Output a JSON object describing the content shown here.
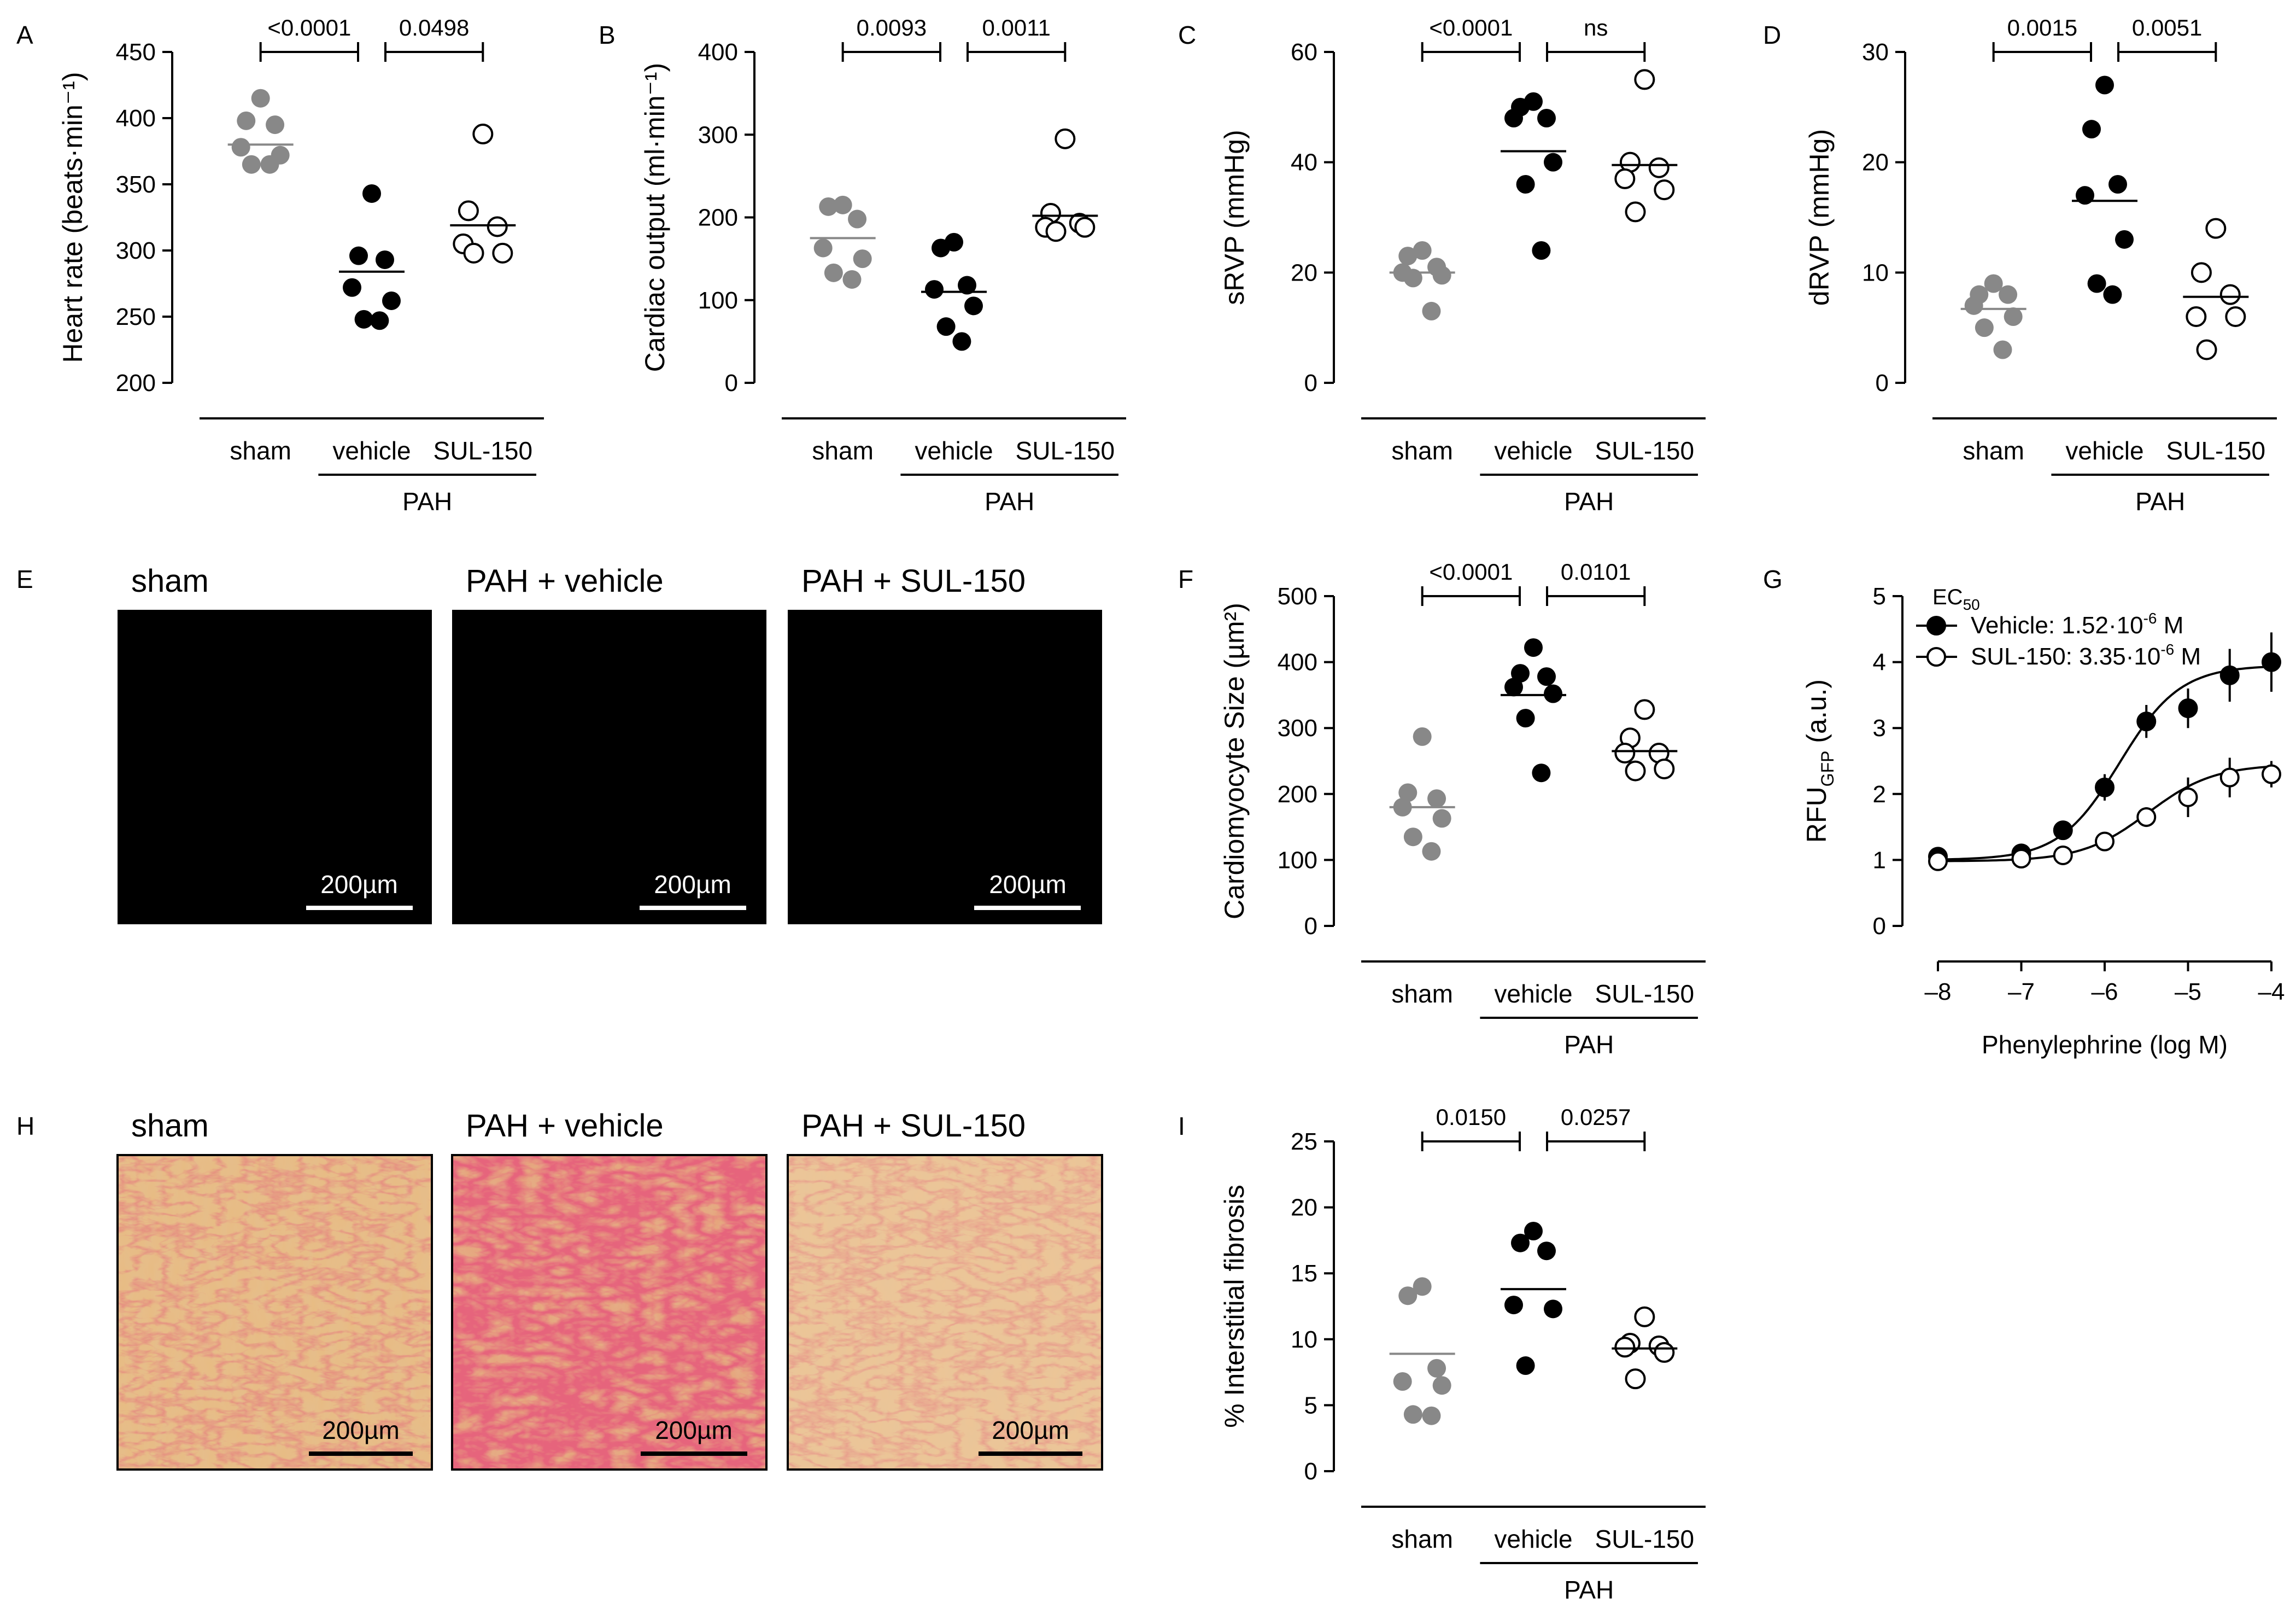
{
  "figure": {
    "panel_letters": [
      "A",
      "B",
      "C",
      "D",
      "E",
      "F",
      "G",
      "H",
      "I"
    ],
    "colors": {
      "sham": "#888888",
      "vehicle": "#000000",
      "sul150": "#ffffff",
      "axis": "#000000",
      "fluor_bg": "#000000",
      "fluor_fg": "#22c022",
      "sirius_bg": "#e8bb82",
      "sirius_fiber": "#c81e3c",
      "scalebar_fluor": "#ffffff",
      "scalebar_sirius": "#000000"
    }
  },
  "chart_data": [
    {
      "id": "A",
      "type": "scatter",
      "ylabel": "Heart rate (beats·min⁻¹)",
      "ylim": [
        200,
        450
      ],
      "yticks": [
        200,
        250,
        300,
        350,
        400,
        450
      ],
      "categories": [
        "sham",
        "vehicle",
        "SUL-150"
      ],
      "group_label": "PAH",
      "series": [
        {
          "name": "sham",
          "style": "gray",
          "values": [
            415,
            398,
            395,
            378,
            372,
            365,
            365
          ],
          "mean": 380
        },
        {
          "name": "vehicle",
          "style": "black",
          "values": [
            343,
            296,
            293,
            272,
            262,
            248,
            247
          ],
          "mean": 284
        },
        {
          "name": "SUL-150",
          "style": "open",
          "values": [
            388,
            330,
            318,
            305,
            298,
            298
          ],
          "mean": 319
        }
      ],
      "comparisons": [
        {
          "from": 0,
          "to": 1,
          "label": "<0.0001"
        },
        {
          "from": 1,
          "to": 2,
          "label": "0.0498"
        }
      ]
    },
    {
      "id": "B",
      "type": "scatter",
      "ylabel": "Cardiac output (ml·min⁻¹)",
      "ylim": [
        0,
        400
      ],
      "yticks": [
        0,
        100,
        200,
        300,
        400
      ],
      "categories": [
        "sham",
        "vehicle",
        "SUL-150"
      ],
      "group_label": "PAH",
      "series": [
        {
          "name": "sham",
          "style": "gray",
          "values": [
            215,
            213,
            198,
            163,
            150,
            133,
            125
          ],
          "mean": 175
        },
        {
          "name": "vehicle",
          "style": "black",
          "values": [
            170,
            163,
            118,
            113,
            93,
            68,
            50
          ],
          "mean": 110
        },
        {
          "name": "SUL-150",
          "style": "open",
          "values": [
            295,
            205,
            193,
            188,
            188,
            183
          ],
          "mean": 202
        }
      ],
      "comparisons": [
        {
          "from": 0,
          "to": 1,
          "label": "0.0093"
        },
        {
          "from": 1,
          "to": 2,
          "label": "0.0011"
        }
      ]
    },
    {
      "id": "C",
      "type": "scatter",
      "ylabel": "sRVP (mmHg)",
      "ylim": [
        0,
        60
      ],
      "yticks": [
        0,
        20,
        40,
        60
      ],
      "categories": [
        "sham",
        "vehicle",
        "SUL-150"
      ],
      "group_label": "PAH",
      "series": [
        {
          "name": "sham",
          "style": "gray",
          "values": [
            24,
            23,
            21,
            20,
            19.5,
            19,
            13
          ],
          "mean": 20
        },
        {
          "name": "vehicle",
          "style": "black",
          "values": [
            51,
            50,
            48,
            48,
            40,
            36,
            24
          ],
          "mean": 42
        },
        {
          "name": "SUL-150",
          "style": "open",
          "values": [
            55,
            40,
            39,
            37,
            35,
            31
          ],
          "mean": 39.5
        }
      ],
      "comparisons": [
        {
          "from": 0,
          "to": 1,
          "label": "<0.0001"
        },
        {
          "from": 1,
          "to": 2,
          "label": "ns"
        }
      ]
    },
    {
      "id": "D",
      "type": "scatter",
      "ylabel": "dRVP (mmHg)",
      "ylim": [
        0,
        30
      ],
      "yticks": [
        0,
        10,
        20,
        30
      ],
      "categories": [
        "sham",
        "vehicle",
        "SUL-150"
      ],
      "group_label": "PAH",
      "series": [
        {
          "name": "sham",
          "style": "gray",
          "values": [
            9,
            8,
            8,
            7,
            6,
            5,
            3
          ],
          "mean": 6.7
        },
        {
          "name": "vehicle",
          "style": "black",
          "values": [
            27,
            23,
            18,
            17,
            13,
            9,
            8
          ],
          "mean": 16.5
        },
        {
          "name": "SUL-150",
          "style": "open",
          "values": [
            14,
            10,
            8,
            6,
            6,
            3
          ],
          "mean": 7.8
        }
      ],
      "comparisons": [
        {
          "from": 0,
          "to": 1,
          "label": "0.0015"
        },
        {
          "from": 1,
          "to": 2,
          "label": "0.0051"
        }
      ]
    },
    {
      "id": "F",
      "type": "scatter",
      "ylabel": "Cardiomyocyte Size (µm²)",
      "ylim": [
        0,
        500
      ],
      "yticks": [
        0,
        100,
        200,
        300,
        400,
        500
      ],
      "categories": [
        "sham",
        "vehicle",
        "SUL-150"
      ],
      "group_label": "PAH",
      "series": [
        {
          "name": "sham",
          "style": "gray",
          "values": [
            287,
            202,
            193,
            180,
            163,
            135,
            113
          ],
          "mean": 180
        },
        {
          "name": "vehicle",
          "style": "black",
          "values": [
            422,
            383,
            378,
            362,
            352,
            315,
            232
          ],
          "mean": 350
        },
        {
          "name": "SUL-150",
          "style": "open",
          "values": [
            328,
            285,
            262,
            262,
            238,
            235
          ],
          "mean": 265
        }
      ],
      "comparisons": [
        {
          "from": 0,
          "to": 1,
          "label": "<0.0001"
        },
        {
          "from": 1,
          "to": 2,
          "label": "0.0101"
        }
      ]
    },
    {
      "id": "I",
      "type": "scatter",
      "ylabel": "% Interstitial fibrosis",
      "ylim": [
        0,
        25
      ],
      "yticks": [
        0,
        5,
        10,
        15,
        20,
        25
      ],
      "categories": [
        "sham",
        "vehicle",
        "SUL-150"
      ],
      "group_label": "PAH",
      "series": [
        {
          "name": "sham",
          "style": "gray",
          "values": [
            14,
            13.3,
            7.8,
            6.8,
            6.5,
            4.3,
            4.2
          ],
          "mean": 8.9
        },
        {
          "name": "vehicle",
          "style": "black",
          "values": [
            18.2,
            17.3,
            16.7,
            12.6,
            12.3,
            8.0
          ],
          "mean": 13.8
        },
        {
          "name": "SUL-150",
          "style": "open",
          "values": [
            11.7,
            9.7,
            9.5,
            9.4,
            9.0,
            7.0
          ],
          "mean": 9.3
        }
      ],
      "comparisons": [
        {
          "from": 0,
          "to": 1,
          "label": "0.0150"
        },
        {
          "from": 1,
          "to": 2,
          "label": "0.0257"
        }
      ]
    },
    {
      "id": "G",
      "type": "line",
      "ylabel": "RFU",
      "ylabel_sub": "GFP",
      "ylabel_suffix": "(a.u.)",
      "xlabel": "Phenylephrine (log M)",
      "xlim": [
        -8,
        -4
      ],
      "xticks": [
        -8,
        -7,
        -6,
        -5,
        -4
      ],
      "xtick_labels": [
        "–8",
        "–7",
        "–6",
        "–5",
        "–4"
      ],
      "ylim": [
        0,
        5
      ],
      "yticks": [
        0,
        1,
        2,
        3,
        4,
        5
      ],
      "legend_title": "EC",
      "legend_title_sub": "50",
      "series": [
        {
          "name": "Vehicle",
          "legend": "Vehicle: 1.52·10",
          "legend_exp": "-6",
          "legend_unit": "M",
          "style": "black",
          "x": [
            -8,
            -7,
            -6.5,
            -6,
            -5.5,
            -5,
            -4.5,
            -4
          ],
          "y": [
            1.05,
            1.1,
            1.45,
            2.1,
            3.1,
            3.3,
            3.8,
            4.0
          ],
          "err": [
            0.06,
            0.08,
            0.1,
            0.2,
            0.25,
            0.3,
            0.4,
            0.45
          ],
          "fit": {
            "bottom": 1.0,
            "top": 3.95,
            "logEC50": -5.82,
            "hill": 1.2
          }
        },
        {
          "name": "SUL-150",
          "legend": "SUL-150: 3.35·10",
          "legend_exp": "-6",
          "legend_unit": "M",
          "style": "open",
          "x": [
            -8,
            -7,
            -6.5,
            -6,
            -5.5,
            -5,
            -4.5,
            -4
          ],
          "y": [
            0.98,
            1.02,
            1.07,
            1.28,
            1.65,
            1.95,
            2.25,
            2.3
          ],
          "err": [
            0.05,
            0.05,
            0.06,
            0.08,
            0.15,
            0.3,
            0.3,
            0.2
          ],
          "fit": {
            "bottom": 0.98,
            "top": 2.45,
            "logEC50": -5.48,
            "hill": 1.1
          }
        }
      ]
    }
  ],
  "micrographs": {
    "fluorescence": {
      "letter": "E",
      "panels": [
        {
          "title": "sham",
          "scale": "200µm"
        },
        {
          "title": "PAH + vehicle",
          "scale": "200µm"
        },
        {
          "title": "PAH + SUL-150",
          "scale": "200µm"
        }
      ]
    },
    "sirius_red": {
      "letter": "H",
      "panels": [
        {
          "title": "sham",
          "scale": "200µm"
        },
        {
          "title": "PAH + vehicle",
          "scale": "200µm"
        },
        {
          "title": "PAH + SUL-150",
          "scale": "200µm"
        }
      ]
    }
  }
}
